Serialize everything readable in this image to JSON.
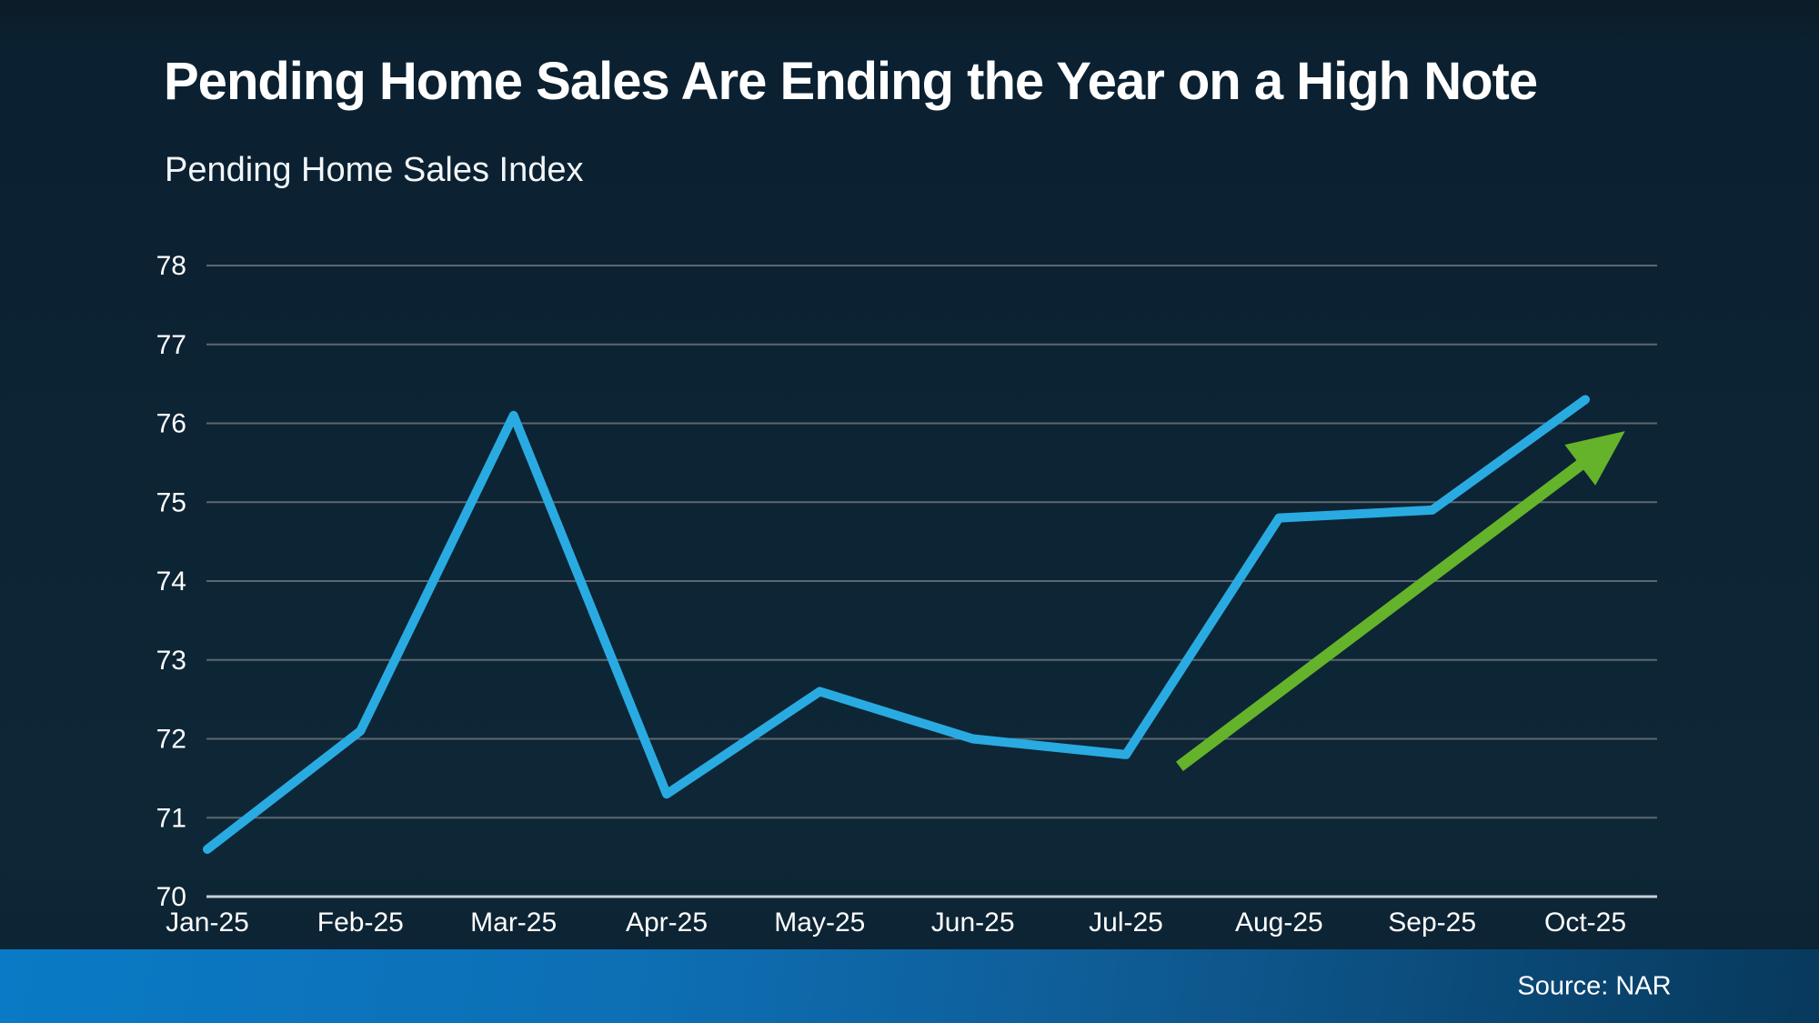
{
  "title": "Pending Home Sales Are Ending the Year on a High Note",
  "subtitle": "Pending Home Sales Index",
  "source": "Source: NAR",
  "chart_data": {
    "type": "line",
    "title": "Pending Home Sales Are Ending the Year on a High Note",
    "subtitle": "Pending Home Sales Index",
    "categories": [
      "Jan-25",
      "Feb-25",
      "Mar-25",
      "Apr-25",
      "May-25",
      "Jun-25",
      "Jul-25",
      "Aug-25",
      "Sep-25",
      "Oct-25"
    ],
    "series": [
      {
        "name": "Pending Home Sales Index",
        "values": [
          70.6,
          72.1,
          76.1,
          71.3,
          72.6,
          72.0,
          71.8,
          74.8,
          74.9,
          76.3
        ],
        "color": "#29abe2"
      }
    ],
    "xlabel": "",
    "ylabel": "",
    "ylim": [
      70,
      78
    ],
    "yticks": [
      70,
      71,
      72,
      73,
      74,
      75,
      76,
      77,
      78
    ],
    "grid": true,
    "legend_position": "none",
    "annotations": [
      {
        "type": "trend-arrow",
        "name": "upward-trend-arrow",
        "color": "#65b32b",
        "from": {
          "x_month_index": 6.35,
          "value": 71.65
        },
        "to": {
          "x_month_index": 9.26,
          "value": 75.9
        }
      }
    ],
    "colors": {
      "line": "#29abe2",
      "arrow": "#65b32b",
      "gridline": "#5d6771",
      "baseline": "#c9cfd6",
      "text": "#ffffff"
    }
  }
}
